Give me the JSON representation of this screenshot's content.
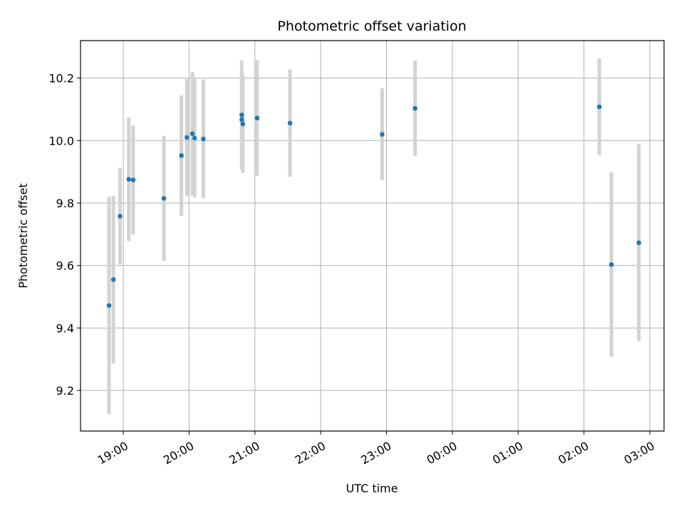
{
  "chart_data": {
    "type": "scatter",
    "title": "Photometric offset variation",
    "xlabel": "UTC time",
    "ylabel": "Photometric offset",
    "x_tick_labels": [
      "19:00",
      "20:00",
      "21:00",
      "22:00",
      "23:00",
      "00:00",
      "01:00",
      "02:00",
      "03:00"
    ],
    "x_ticks": [
      "2000-01-01T19:00",
      "2000-01-01T20:00",
      "2000-01-01T21:00",
      "2000-01-01T22:00",
      "2000-01-01T23:00",
      "2000-01-02T00:00",
      "2000-01-02T01:00",
      "2000-01-02T02:00",
      "2000-01-02T03:00"
    ],
    "y_ticks": [
      9.2,
      9.4,
      9.6,
      9.8,
      10.0,
      10.2
    ],
    "y_tick_labels": [
      "9.2",
      "9.4",
      "9.6",
      "9.8",
      "10.0",
      "10.2"
    ],
    "xlim": [
      "2000-01-01T18:21",
      "2000-01-02T03:13"
    ],
    "ylim": [
      9.07,
      10.32
    ],
    "grid": true,
    "marker_color": "#1f77b4",
    "errorbar_color": "#d3d3d3",
    "points": [
      {
        "x": "2000-01-01T18:47",
        "y": 9.472,
        "err": 0.348
      },
      {
        "x": "2000-01-01T18:51",
        "y": 9.555,
        "err": 0.268
      },
      {
        "x": "2000-01-01T18:57",
        "y": 9.758,
        "err": 0.155
      },
      {
        "x": "2000-01-01T19:05",
        "y": 9.876,
        "err": 0.198
      },
      {
        "x": "2000-01-01T19:09",
        "y": 9.874,
        "err": 0.175
      },
      {
        "x": "2000-01-01T19:37",
        "y": 9.815,
        "err": 0.2
      },
      {
        "x": "2000-01-01T19:53",
        "y": 9.952,
        "err": 0.193
      },
      {
        "x": "2000-01-01T19:58",
        "y": 10.01,
        "err": 0.187
      },
      {
        "x": "2000-01-01T20:03",
        "y": 10.022,
        "err": 0.197
      },
      {
        "x": "2000-01-01T20:05",
        "y": 10.008,
        "err": 0.19
      },
      {
        "x": "2000-01-01T20:13",
        "y": 10.005,
        "err": 0.19
      },
      {
        "x": "2000-01-01T20:48",
        "y": 10.082,
        "err": 0.175
      },
      {
        "x": "2000-01-01T20:48",
        "y": 10.067,
        "err": 0.15
      },
      {
        "x": "2000-01-01T20:49",
        "y": 10.053,
        "err": 0.157
      },
      {
        "x": "2000-01-01T21:02",
        "y": 10.072,
        "err": 0.185
      },
      {
        "x": "2000-01-01T21:32",
        "y": 10.056,
        "err": 0.172
      },
      {
        "x": "2000-01-01T22:56",
        "y": 10.02,
        "err": 0.147
      },
      {
        "x": "2000-01-01T23:26",
        "y": 10.103,
        "err": 0.153
      },
      {
        "x": "2000-01-02T02:14",
        "y": 10.108,
        "err": 0.155
      },
      {
        "x": "2000-01-02T02:25",
        "y": 9.603,
        "err": 0.295
      },
      {
        "x": "2000-01-02T02:50",
        "y": 9.673,
        "err": 0.315
      }
    ]
  }
}
